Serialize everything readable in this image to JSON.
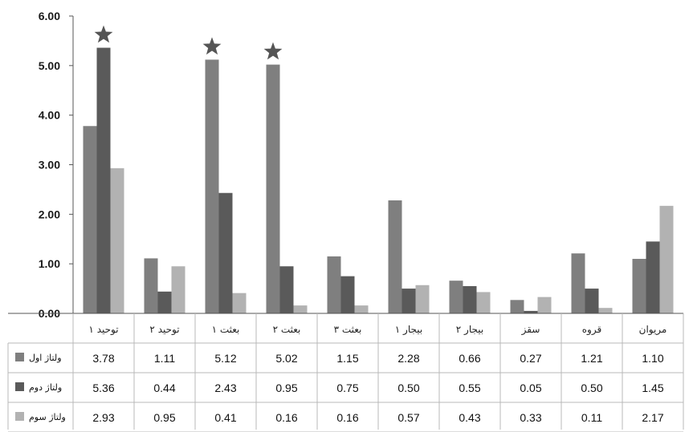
{
  "chart_data": {
    "type": "bar",
    "categories": [
      "توحید ۱",
      "توحید ۲",
      "بعثت ۱",
      "بعثت ۲",
      "بعثت ۳",
      "بیجار ۱",
      "بیجار ۲",
      "سقز",
      "قروه",
      "مریوان"
    ],
    "series": [
      {
        "name": "ولتاژ اول",
        "color": "#7f7f7f",
        "values": [
          3.78,
          1.11,
          5.12,
          5.02,
          1.15,
          2.28,
          0.66,
          0.27,
          1.21,
          1.1
        ],
        "labels": [
          "3.78",
          "1.11",
          "5.12",
          "5.02",
          "1.15",
          "2.28",
          "0.66",
          "0.27",
          "1.21",
          "1.10"
        ]
      },
      {
        "name": "ولتاژ دوم",
        "color": "#5a5a5a",
        "values": [
          5.36,
          0.44,
          2.43,
          0.95,
          0.75,
          0.5,
          0.55,
          0.05,
          0.5,
          1.45
        ],
        "labels": [
          "5.36",
          "0.44",
          "2.43",
          "0.95",
          "0.75",
          "0.50",
          "0.55",
          "0.05",
          "0.50",
          "1.45"
        ]
      },
      {
        "name": "ولتاژ سوم",
        "color": "#b2b2b2",
        "values": [
          2.93,
          0.95,
          0.41,
          0.16,
          0.16,
          0.57,
          0.43,
          0.33,
          0.11,
          2.17
        ],
        "labels": [
          "2.93",
          "0.95",
          "0.41",
          "0.16",
          "0.16",
          "0.57",
          "0.43",
          "0.33",
          "0.11",
          "2.17"
        ]
      }
    ],
    "ylim": [
      0,
      6
    ],
    "yticks": [
      "0.00",
      "1.00",
      "2.00",
      "3.00",
      "4.00",
      "5.00",
      "6.00"
    ],
    "grid": false,
    "legend": "data-table",
    "annotations": [
      {
        "symbol": "star",
        "category": "توحید ۱",
        "series": "ولتاژ دوم"
      },
      {
        "symbol": "star",
        "category": "بعثت ۱",
        "series": "ولتاژ اول"
      },
      {
        "symbol": "star",
        "category": "بعثت ۲",
        "series": "ولتاژ اول"
      }
    ]
  }
}
